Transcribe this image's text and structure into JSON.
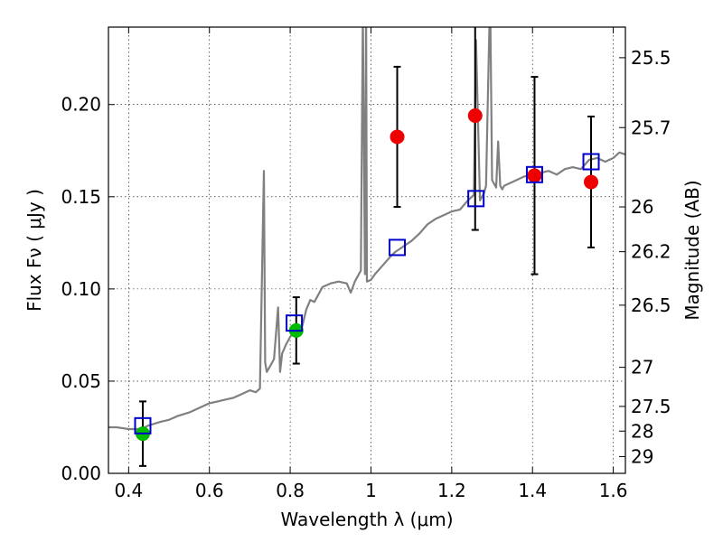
{
  "chart_data": {
    "type": "scatter",
    "title": "",
    "xlabel": "Wavelength  λ (μm)",
    "ylabel": "Flux  Fν ( μJy )",
    "ylabel_right": "Magnitude (AB)",
    "xlim": [
      0.35,
      1.63
    ],
    "ylim": [
      0.0,
      0.242
    ],
    "grid": true,
    "x_ticks": [
      0.4,
      0.6,
      0.8,
      1.0,
      1.2,
      1.4,
      1.6
    ],
    "x_tick_labels": [
      "0.4",
      "0.6",
      "0.8",
      "1",
      "1.2",
      "1.4",
      "1.6"
    ],
    "y_ticks": [
      0.0,
      0.05,
      0.1,
      0.15,
      0.2
    ],
    "y_tick_labels": [
      "0.00",
      "0.05",
      "0.10",
      "0.15",
      "0.20"
    ],
    "right_ticks": [
      {
        "flux": 0.2254,
        "label": "25.5"
      },
      {
        "flux": 0.1875,
        "label": "25.7"
      },
      {
        "flux": 0.1445,
        "label": "26"
      },
      {
        "flux": 0.1202,
        "label": "26.2"
      },
      {
        "flux": 0.0912,
        "label": "26.5"
      },
      {
        "flux": 0.0575,
        "label": "27"
      },
      {
        "flux": 0.0363,
        "label": "27.5"
      },
      {
        "flux": 0.0229,
        "label": "28"
      },
      {
        "flux": 0.0091,
        "label": "29"
      }
    ],
    "colors": {
      "spectrum": "#808080",
      "model_squares": "#0000cc",
      "red_points": "#ee0000",
      "green_points": "#00bb00",
      "errorbars": "#000000"
    },
    "series": [
      {
        "kind": "line",
        "x": [
          0.35,
          0.37,
          0.4,
          0.43,
          0.45,
          0.48,
          0.5,
          0.52,
          0.55,
          0.58,
          0.6,
          0.62,
          0.64,
          0.66,
          0.68,
          0.7,
          0.715,
          0.725,
          0.735,
          0.738,
          0.742,
          0.75,
          0.76,
          0.77,
          0.775,
          0.78,
          0.79,
          0.8,
          0.81,
          0.82,
          0.83,
          0.84,
          0.85,
          0.86,
          0.88,
          0.9,
          0.92,
          0.94,
          0.95,
          0.96,
          0.975,
          0.98,
          0.985,
          0.988,
          0.99,
          1.0,
          1.01,
          1.03,
          1.05,
          1.06,
          1.08,
          1.1,
          1.12,
          1.14,
          1.16,
          1.18,
          1.2,
          1.22,
          1.24,
          1.255,
          1.26,
          1.27,
          1.28,
          1.285,
          1.29,
          1.295,
          1.3,
          1.31,
          1.315,
          1.32,
          1.325,
          1.33,
          1.35,
          1.38,
          1.4,
          1.42,
          1.44,
          1.46,
          1.48,
          1.5,
          1.52,
          1.54,
          1.56,
          1.58,
          1.6,
          1.615,
          1.63
        ],
        "y": [
          0.025,
          0.025,
          0.024,
          0.024,
          0.026,
          0.028,
          0.029,
          0.031,
          0.033,
          0.036,
          0.038,
          0.039,
          0.04,
          0.041,
          0.043,
          0.045,
          0.044,
          0.046,
          0.164,
          0.06,
          0.055,
          0.058,
          0.062,
          0.09,
          0.055,
          0.065,
          0.07,
          0.074,
          0.077,
          0.075,
          0.08,
          0.089,
          0.094,
          0.093,
          0.101,
          0.103,
          0.104,
          0.103,
          0.098,
          0.104,
          0.11,
          0.25,
          0.108,
          0.25,
          0.104,
          0.105,
          0.108,
          0.113,
          0.118,
          0.12,
          0.123,
          0.126,
          0.13,
          0.135,
          0.138,
          0.14,
          0.142,
          0.143,
          0.148,
          0.151,
          0.235,
          0.148,
          0.152,
          0.156,
          0.21,
          0.26,
          0.159,
          0.155,
          0.18,
          0.156,
          0.154,
          0.156,
          0.158,
          0.161,
          0.162,
          0.163,
          0.164,
          0.162,
          0.165,
          0.166,
          0.165,
          0.17,
          0.171,
          0.169,
          0.171,
          0.174,
          0.173
        ]
      },
      {
        "kind": "squares",
        "x": [
          0.435,
          0.81,
          1.065,
          1.26,
          1.405,
          1.545
        ],
        "y": [
          0.0258,
          0.0815,
          0.1225,
          0.149,
          0.162,
          0.169
        ]
      },
      {
        "kind": "points",
        "color": "green",
        "x": [
          0.435,
          0.815
        ],
        "y": [
          0.0215,
          0.0775
        ],
        "err": [
          0.0175,
          0.018
        ]
      },
      {
        "kind": "points",
        "color": "red",
        "x": [
          1.065,
          1.258,
          1.405,
          1.545
        ],
        "y": [
          0.1825,
          0.194,
          0.1615,
          0.158
        ],
        "err": [
          0.038,
          0.062,
          0.0535,
          0.0355
        ]
      }
    ]
  }
}
